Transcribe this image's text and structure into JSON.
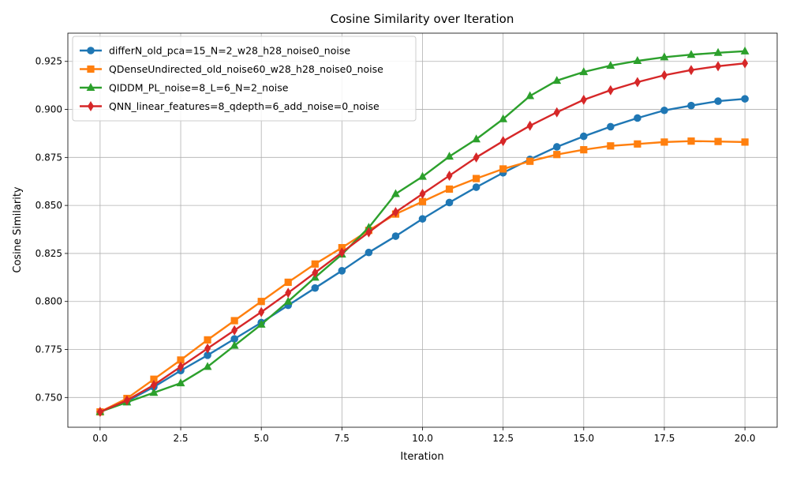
{
  "chart_data": {
    "type": "line",
    "title": "Cosine Similarity over Iteration",
    "xlabel": "Iteration",
    "ylabel": "Cosine Similarity",
    "xlim": [
      -1.0,
      21.0
    ],
    "ylim": [
      0.7345,
      0.9397
    ],
    "xticks": [
      0.0,
      2.5,
      5.0,
      7.5,
      10.0,
      12.5,
      15.0,
      17.5,
      20.0
    ],
    "yticks": [
      0.75,
      0.775,
      0.8,
      0.825,
      0.85,
      0.875,
      0.9,
      0.925
    ],
    "xtick_labels": [
      "0.0",
      "2.5",
      "5.0",
      "7.5",
      "10.0",
      "12.5",
      "15.0",
      "17.5",
      "20.0"
    ],
    "ytick_labels": [
      "0.750",
      "0.775",
      "0.800",
      "0.825",
      "0.850",
      "0.875",
      "0.900",
      "0.925"
    ],
    "grid": true,
    "legend_position": "upper-left",
    "x": [
      0.0,
      0.833,
      1.667,
      2.5,
      3.333,
      4.167,
      5.0,
      5.833,
      6.667,
      7.5,
      8.333,
      9.167,
      10.0,
      10.833,
      11.667,
      12.5,
      13.333,
      14.167,
      15.0,
      15.833,
      16.667,
      17.5,
      18.333,
      19.167,
      20.0
    ],
    "series": [
      {
        "name": "differN_old_pca=15_N=2_w28_h28_noise0_noise",
        "color": "#1f77b4",
        "marker": "circle",
        "values": [
          0.7425,
          0.748,
          0.7555,
          0.764,
          0.772,
          0.7805,
          0.789,
          0.798,
          0.807,
          0.816,
          0.8255,
          0.834,
          0.843,
          0.8515,
          0.8595,
          0.867,
          0.874,
          0.8805,
          0.886,
          0.891,
          0.8955,
          0.8995,
          0.902,
          0.9043,
          0.9055
        ]
      },
      {
        "name": "QDenseUndirected_old_noise60_w28_h28_noise0_noise",
        "color": "#ff7f0e",
        "marker": "square",
        "values": [
          0.7425,
          0.7495,
          0.7595,
          0.7695,
          0.78,
          0.79,
          0.8,
          0.81,
          0.8195,
          0.828,
          0.837,
          0.8455,
          0.852,
          0.8585,
          0.864,
          0.869,
          0.873,
          0.8765,
          0.879,
          0.881,
          0.882,
          0.883,
          0.8835,
          0.8833,
          0.883
        ]
      },
      {
        "name": "QIDDM_PL_noise=8_L=6_N=2_noise",
        "color": "#2ca02c",
        "marker": "triangle",
        "values": [
          0.7425,
          0.7475,
          0.7525,
          0.7575,
          0.766,
          0.777,
          0.788,
          0.8,
          0.8125,
          0.8245,
          0.8385,
          0.856,
          0.865,
          0.8755,
          0.8845,
          0.895,
          0.907,
          0.915,
          0.9195,
          0.9228,
          0.9253,
          0.9272,
          0.9285,
          0.9295,
          0.9303
        ]
      },
      {
        "name": "QNN_linear_features=8_qdepth=6_add_noise=0_noise",
        "color": "#d62728",
        "marker": "diamond",
        "values": [
          0.7425,
          0.7485,
          0.7565,
          0.766,
          0.7755,
          0.785,
          0.7945,
          0.8045,
          0.815,
          0.8255,
          0.836,
          0.8465,
          0.856,
          0.8655,
          0.875,
          0.8835,
          0.8915,
          0.8985,
          0.905,
          0.91,
          0.9142,
          0.9178,
          0.9205,
          0.9225,
          0.924
        ]
      }
    ]
  }
}
